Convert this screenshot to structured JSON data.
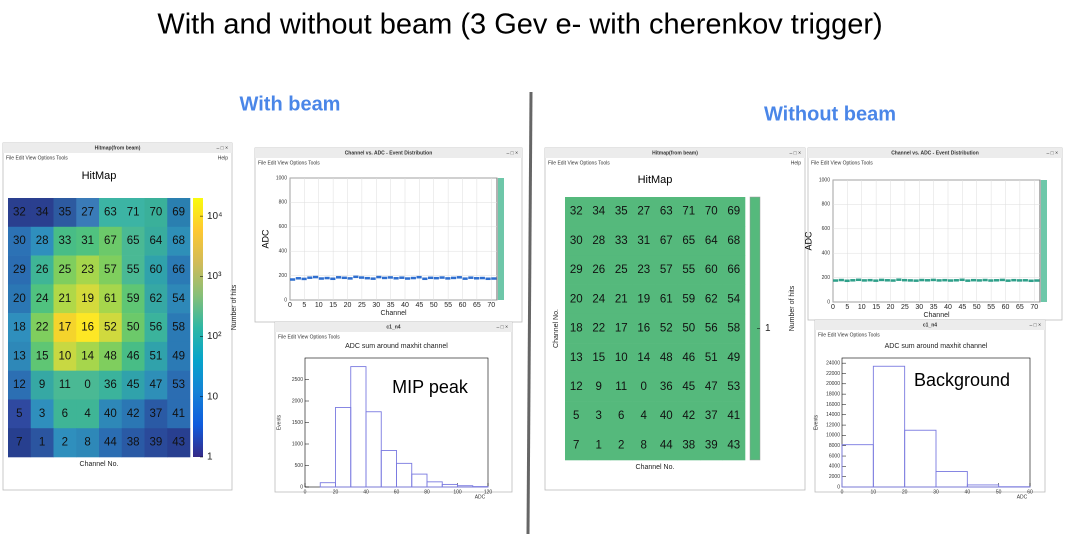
{
  "title": "With and without beam (3 Gev e- with cherenkov trigger)",
  "panels": [
    {
      "heading": "With beam",
      "hitmap_window": {
        "window_title": "Hitmap(from beam)",
        "menu": "File Edit View Options Tools",
        "help": "Help",
        "plot_title": "HitMap",
        "x_label": "Channel No.",
        "z_label": "Number of hits",
        "channels": [
          [
            32,
            34,
            35,
            27,
            63,
            71,
            70,
            69
          ],
          [
            30,
            28,
            33,
            31,
            67,
            65,
            64,
            68
          ],
          [
            29,
            26,
            25,
            23,
            57,
            55,
            60,
            66
          ],
          [
            20,
            24,
            21,
            19,
            61,
            59,
            62,
            54
          ],
          [
            18,
            22,
            17,
            16,
            52,
            50,
            56,
            58
          ],
          [
            13,
            15,
            10,
            14,
            48,
            46,
            51,
            49
          ],
          [
            12,
            9,
            11,
            0,
            36,
            45,
            47,
            53
          ],
          [
            5,
            3,
            6,
            4,
            40,
            42,
            37,
            41
          ],
          [
            7,
            1,
            2,
            8,
            44,
            38,
            39,
            43
          ]
        ],
        "cell_colors": [
          [
            "#2a3f8f",
            "#2a3f8f",
            "#2d5aa0",
            "#3a7bb8",
            "#3cb4a4",
            "#3cb4a4",
            "#3ab09a",
            "#2a7fb0"
          ],
          [
            "#2c72b5",
            "#2f8fbd",
            "#48bd86",
            "#50c27f",
            "#6cc96a",
            "#4ab994",
            "#38ac9e",
            "#2e8fb8"
          ],
          [
            "#2b6db2",
            "#3fb596",
            "#7fce5e",
            "#a6d64c",
            "#7fce5e",
            "#4ab994",
            "#30a2ab",
            "#2b7ab5"
          ],
          [
            "#2b77b4",
            "#50c27f",
            "#b0d848",
            "#d4da3c",
            "#a6d64c",
            "#5fc674",
            "#36a8a4",
            "#2e88b8"
          ],
          [
            "#2f8fbd",
            "#7fce5e",
            "#f4d42c",
            "#fde725",
            "#d0d93e",
            "#6cc96a",
            "#3bb39c",
            "#2b7ab5"
          ],
          [
            "#2e88b8",
            "#5fc674",
            "#c8d842",
            "#a6d64c",
            "#7fce5e",
            "#48bd86",
            "#30a2ab",
            "#2b7ab5"
          ],
          [
            "#2c6fb3",
            "#36a8a4",
            "#4ab994",
            "#4ab994",
            "#3bb39c",
            "#30a2ab",
            "#2e8fb8",
            "#2b6db2"
          ],
          [
            "#2f49a0",
            "#2f8fbd",
            "#3fb596",
            "#3fb596",
            "#2e88b8",
            "#2b77b4",
            "#2a5aa5",
            "#2b6db2"
          ],
          [
            "#273f8f",
            "#2b55a0",
            "#2f8fbd",
            "#2e88b8",
            "#2b6db2",
            "#2a5aa5",
            "#2a4a9a",
            "#283f90"
          ]
        ],
        "z_log": true,
        "zlim": [
          1,
          20000
        ],
        "z_ticks": [
          {
            "value": 10000,
            "label": "10⁴"
          },
          {
            "value": 1000,
            "label": "10³"
          },
          {
            "value": 100,
            "label": "10²"
          },
          10,
          1
        ]
      },
      "adc_window": {
        "window_title": "Channel vs. ADC - Event Distribution",
        "x_label": "Channel",
        "y_label": "ADC",
        "xlim": [
          0,
          72
        ],
        "ylim": [
          0,
          1000
        ],
        "xticks": [
          0,
          5,
          10,
          15,
          20,
          25,
          30,
          35,
          40,
          45,
          50,
          55,
          60,
          65,
          70
        ],
        "yticks": [
          0,
          200,
          400,
          600,
          800,
          1000
        ],
        "point_color": "#2f6fd0",
        "points": {
          "x": [
            0,
            2,
            4,
            6,
            8,
            10,
            12,
            14,
            16,
            18,
            20,
            22,
            24,
            26,
            28,
            30,
            32,
            34,
            36,
            38,
            40,
            42,
            44,
            46,
            48,
            50,
            52,
            54,
            56,
            58,
            60,
            62,
            64,
            66,
            68,
            70
          ],
          "y": [
            170,
            180,
            175,
            185,
            190,
            178,
            182,
            176,
            188,
            184,
            179,
            192,
            186,
            181,
            177,
            190,
            183,
            187,
            180,
            185,
            178,
            182,
            189,
            176,
            184,
            181,
            186,
            179,
            183,
            188,
            177,
            185,
            180,
            182,
            176,
            178
          ]
        }
      },
      "hist_window": {
        "window_title": "c1_n4",
        "plot_title": "ADC sum around maxhit channel",
        "annotation": "MIP peak",
        "x_label": "ADC",
        "y_label": "Events",
        "color": "#7a7ae0",
        "bins": [
          0,
          10,
          20,
          30,
          40,
          50,
          60,
          70,
          80,
          90,
          100,
          110,
          120
        ],
        "counts": [
          0,
          100,
          1850,
          2800,
          1750,
          850,
          550,
          300,
          120,
          60,
          30,
          10
        ],
        "xlim": [
          0,
          120
        ],
        "ylim": [
          0,
          3000
        ],
        "xticks": [
          0,
          20,
          40,
          60,
          80,
          100,
          120
        ],
        "yticks": [
          0,
          500,
          1000,
          1500,
          2000,
          2500
        ]
      }
    },
    {
      "heading": "Without beam",
      "hitmap_window": {
        "window_title": "Hitmap(from beam)",
        "menu": "File Edit View Options Tools",
        "help": "Help",
        "plot_title": "HitMap",
        "x_label": "Channel No.",
        "y_label": "Channel No.",
        "z_label": "Number of hits",
        "channels": [
          [
            32,
            34,
            35,
            27,
            63,
            71,
            70,
            69
          ],
          [
            30,
            28,
            33,
            31,
            67,
            65,
            64,
            68
          ],
          [
            29,
            26,
            25,
            23,
            57,
            55,
            60,
            66
          ],
          [
            20,
            24,
            21,
            19,
            61,
            59,
            62,
            54
          ],
          [
            18,
            22,
            17,
            16,
            52,
            50,
            56,
            58
          ],
          [
            13,
            15,
            10,
            14,
            48,
            46,
            51,
            49
          ],
          [
            12,
            9,
            11,
            0,
            36,
            45,
            47,
            53
          ],
          [
            5,
            3,
            6,
            4,
            40,
            42,
            37,
            41
          ],
          [
            7,
            1,
            2,
            8,
            44,
            38,
            39,
            43
          ]
        ],
        "cell_color": "#55b97c",
        "z_log": false,
        "zlim": [
          0,
          2
        ],
        "z_ticks": [
          1
        ]
      },
      "adc_window": {
        "window_title": "Channel vs. ADC - Event Distribution",
        "x_label": "Channel",
        "y_label": "ADC",
        "xlim": [
          0,
          72
        ],
        "ylim": [
          0,
          1000
        ],
        "xticks": [
          0,
          5,
          10,
          15,
          20,
          25,
          30,
          35,
          40,
          45,
          50,
          55,
          60,
          65,
          70
        ],
        "yticks": [
          0,
          200,
          400,
          600,
          800,
          1000
        ],
        "point_color": "#2fa08a",
        "points": {
          "x": [
            0,
            2,
            4,
            6,
            8,
            10,
            12,
            14,
            16,
            18,
            20,
            22,
            24,
            26,
            28,
            30,
            32,
            34,
            36,
            38,
            40,
            42,
            44,
            46,
            48,
            50,
            52,
            54,
            56,
            58,
            60,
            62,
            64,
            66,
            68,
            70
          ],
          "y": [
            178,
            182,
            176,
            180,
            184,
            179,
            181,
            177,
            183,
            180,
            178,
            185,
            181,
            179,
            177,
            182,
            180,
            183,
            179,
            181,
            178,
            180,
            184,
            177,
            181,
            179,
            182,
            178,
            180,
            183,
            177,
            181,
            179,
            180,
            176,
            178
          ]
        }
      },
      "hist_window": {
        "window_title": "c1_n4",
        "plot_title": "ADC sum around maxhit channel",
        "annotation": "Background",
        "x_label": "ADC",
        "y_label": "Events",
        "color": "#7a7ae0",
        "bins": [
          0,
          10,
          20,
          30,
          40,
          50,
          60
        ],
        "counts": [
          8200,
          23400,
          11000,
          3000,
          400,
          50
        ],
        "xlim": [
          0,
          60
        ],
        "ylim": [
          0,
          25000
        ],
        "xticks": [
          0,
          10,
          20,
          30,
          40,
          50,
          60
        ],
        "yticks": [
          0,
          2000,
          4000,
          6000,
          8000,
          10000,
          12000,
          14000,
          16000,
          18000,
          20000,
          22000,
          24000
        ]
      }
    }
  ]
}
